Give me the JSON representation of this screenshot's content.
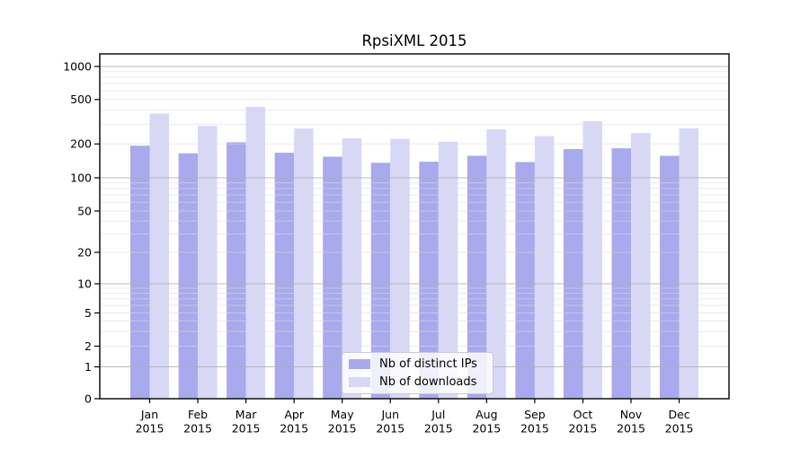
{
  "chart_data": {
    "type": "bar",
    "title": "RpsiXML 2015",
    "categories": [
      "Jan",
      "Feb",
      "Mar",
      "Apr",
      "May",
      "Jun",
      "Jul",
      "Aug",
      "Sep",
      "Oct",
      "Nov",
      "Dec"
    ],
    "x_year_label": "2015",
    "series": [
      {
        "name": "Nb of distinct IPs",
        "color": "#a9a9ed",
        "values": [
          193,
          165,
          207,
          167,
          154,
          136,
          139,
          157,
          138,
          180,
          183,
          157
        ]
      },
      {
        "name": "Nb of downloads",
        "color": "#d8d8f6",
        "values": [
          375,
          290,
          430,
          275,
          225,
          222,
          209,
          270,
          235,
          320,
          250,
          276
        ]
      }
    ],
    "y_axis": {
      "scale": "log (0 at baseline)",
      "ticks": [
        0,
        1,
        2,
        5,
        10,
        20,
        50,
        100,
        200,
        500,
        1000
      ],
      "ylim": [
        0,
        1000
      ]
    },
    "legend": {
      "position": "lower center"
    },
    "grid": {
      "horizontal": true,
      "minor_at": "mantissas 2-9 each decade",
      "major_at": "1,10,100,1000"
    },
    "style_colors": {
      "major_grid": "#b0b0b0",
      "minor_grid": "#dcdcdc",
      "frame": "#000000"
    }
  }
}
